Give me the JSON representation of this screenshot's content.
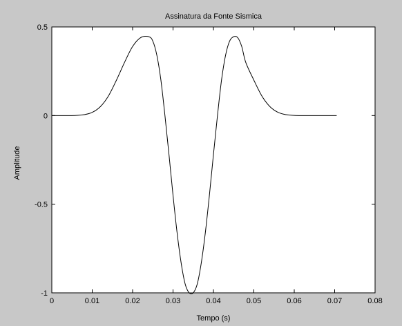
{
  "chart_data": {
    "type": "line",
    "title": "Assinatura da Fonte Sismica",
    "xlabel": "Tempo (s)",
    "ylabel": "Amplitude",
    "xlim": [
      0,
      0.08
    ],
    "ylim": [
      -1,
      0.5
    ],
    "xticks": [
      0,
      0.01,
      0.02,
      0.03,
      0.04,
      0.05,
      0.06,
      0.07,
      0.08
    ],
    "xtick_labels": [
      "0",
      "0.01",
      "0.02",
      "0.03",
      "0.04",
      "0.05",
      "0.06",
      "0.07",
      "0.08"
    ],
    "yticks": [
      -1,
      -0.5,
      0,
      0.5
    ],
    "ytick_labels": [
      "-1",
      "-0.5",
      "0",
      "0.5"
    ],
    "grid": false,
    "colors": {
      "background": "#c8c8c8",
      "axes": "#ffffff",
      "line": "#000000"
    },
    "series": [
      {
        "x": [
          0,
          0.002,
          0.004,
          0.006,
          0.008,
          0.01,
          0.012,
          0.014,
          0.016,
          0.018,
          0.02,
          0.022,
          0.024,
          0.025,
          0.026,
          0.027,
          0.028,
          0.029,
          0.03,
          0.031,
          0.032,
          0.033,
          0.034,
          0.035,
          0.036,
          0.037,
          0.038,
          0.039,
          0.04,
          0.041,
          0.042,
          0.043,
          0.044,
          0.045,
          0.046,
          0.047,
          0.048,
          0.05,
          0.052,
          0.054,
          0.056,
          0.058,
          0.06,
          0.062,
          0.064,
          0.066,
          0.068,
          0.0705
        ],
        "y": [
          0,
          0,
          0,
          0.001,
          0.005,
          0.018,
          0.05,
          0.11,
          0.2,
          0.3,
          0.39,
          0.44,
          0.445,
          0.42,
          0.34,
          0.2,
          0.0,
          -0.22,
          -0.45,
          -0.66,
          -0.83,
          -0.95,
          -1.0,
          -1.0,
          -0.95,
          -0.83,
          -0.66,
          -0.45,
          -0.22,
          0.0,
          0.2,
          0.34,
          0.42,
          0.445,
          0.44,
          0.39,
          0.3,
          0.2,
          0.11,
          0.05,
          0.018,
          0.005,
          0.001,
          0,
          0,
          0,
          0,
          0
        ]
      }
    ]
  }
}
